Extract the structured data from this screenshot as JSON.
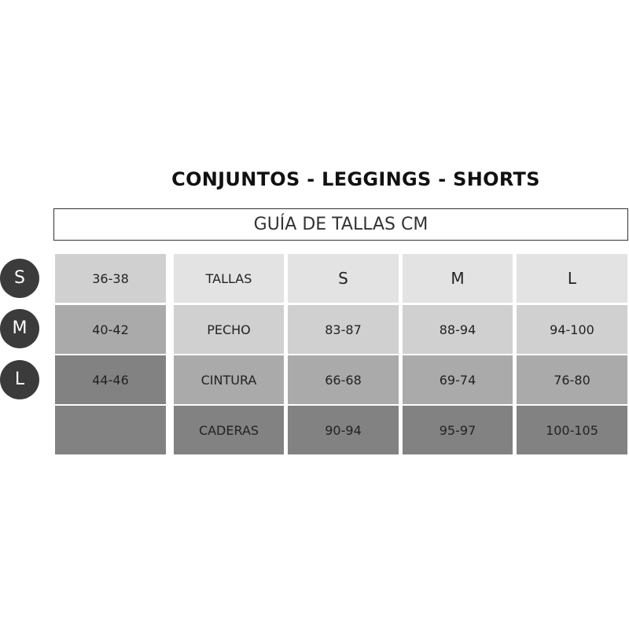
{
  "title": "CONJUNTOS - LEGGINGS - SHORTS",
  "subtitle": "GUÍA DE TALLAS  CM",
  "size_badges": [
    "S",
    "M",
    "L"
  ],
  "eu_sizes": [
    "36-38",
    "40-42",
    "44-46",
    ""
  ],
  "table": {
    "header": [
      "TALLAS",
      "S",
      "M",
      "L"
    ],
    "rows": [
      [
        "PECHO",
        "83-87",
        "88-94",
        "94-100"
      ],
      [
        "CINTURA",
        "66-68",
        "69-74",
        "76-80"
      ],
      [
        "CADERAS",
        "90-94",
        "95-97",
        "100-105"
      ]
    ]
  },
  "colors": {
    "row1": "#e3e3e3",
    "row2": "#d0d0d0",
    "row3": "#aaaaaa",
    "row4": "#828282",
    "badge": "#3b3b3b"
  }
}
